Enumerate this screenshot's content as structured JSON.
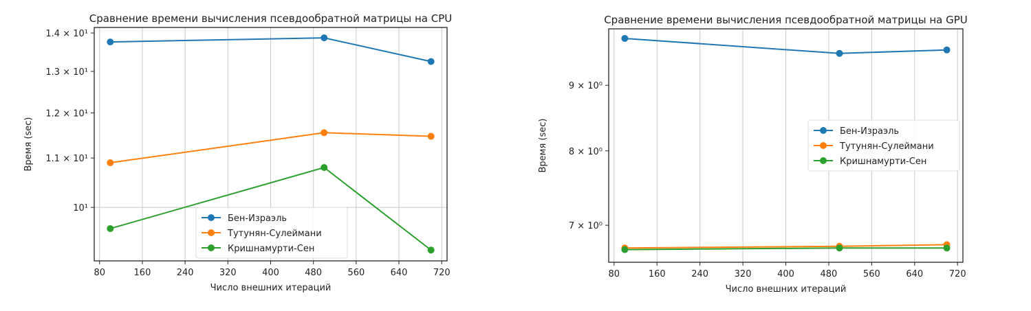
{
  "chart_data": [
    {
      "type": "line",
      "title": "Сравнение времени вычисления псевдообратной матрицы на CPU",
      "xlabel": "Число внешних итераций",
      "ylabel": "Время (sec)",
      "x": [
        100,
        500,
        700
      ],
      "xlim": [
        70,
        730
      ],
      "xticks": [
        80,
        160,
        240,
        320,
        400,
        480,
        560,
        640,
        720
      ],
      "yscale": "log",
      "ylim": [
        9.02,
        14.15
      ],
      "yticks": [
        {
          "value": 14,
          "label": "1.4 × 10¹",
          "major": false
        },
        {
          "value": 13,
          "label": "1.3 × 10¹",
          "major": false
        },
        {
          "value": 12,
          "label": "1.2 × 10¹",
          "major": false
        },
        {
          "value": 11,
          "label": "1.1 × 10¹",
          "major": false
        },
        {
          "value": 10,
          "label": "10¹",
          "major": true
        }
      ],
      "grid": true,
      "legend_position": "lower-center",
      "series": [
        {
          "name": "Бен-Израэль",
          "color": "#1f77b4",
          "values": [
            13.76,
            13.87,
            13.25
          ]
        },
        {
          "name": "Тутунян-Сулеймани",
          "color": "#ff7f0e",
          "values": [
            10.9,
            11.55,
            11.47
          ]
        },
        {
          "name": "Кришнамурти-Сен",
          "color": "#2ca02c",
          "values": [
            9.6,
            10.8,
            9.21
          ]
        }
      ]
    },
    {
      "type": "line",
      "title": "Сравнение времени вычисления псевдообратной матрицы на GPU",
      "xlabel": "Число внешних итераций",
      "ylabel": "Время (sec)",
      "x": [
        100,
        500,
        700
      ],
      "xlim": [
        70,
        730
      ],
      "xticks": [
        80,
        160,
        240,
        320,
        400,
        480,
        560,
        640,
        720
      ],
      "yscale": "log",
      "ylim": [
        6.55,
        9.96
      ],
      "yticks": [
        {
          "value": 9,
          "label": "9 × 10⁰",
          "major": false
        },
        {
          "value": 8,
          "label": "8 × 10⁰",
          "major": false
        },
        {
          "value": 7,
          "label": "7 × 10⁰",
          "major": false
        }
      ],
      "grid": true,
      "legend_position": "center-right",
      "series": [
        {
          "name": "Бен-Израэль",
          "color": "#1f77b4",
          "values": [
            9.79,
            9.53,
            9.59
          ]
        },
        {
          "name": "Тутунян-Сулеймани",
          "color": "#ff7f0e",
          "values": [
            6.72,
            6.74,
            6.76
          ]
        },
        {
          "name": "Кришнамурти-Сен",
          "color": "#2ca02c",
          "values": [
            6.7,
            6.72,
            6.72
          ]
        }
      ]
    }
  ]
}
